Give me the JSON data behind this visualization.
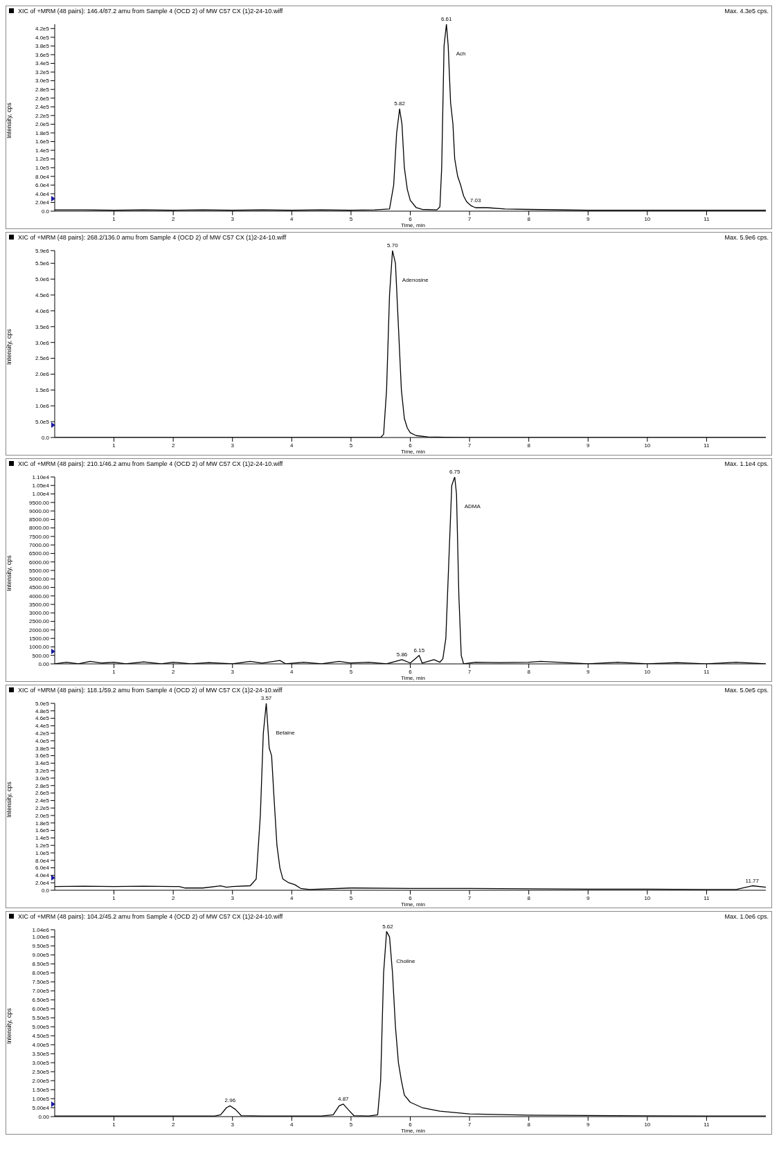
{
  "chart_data": [
    {
      "type": "line",
      "title": "XIC of +MRM (48 pairs): 146.4/87.2 amu from Sample 4 (OCD 2) of MW C57 CX (1)2-24-10.wiff",
      "subtitle": "Max. 4.3e5 cps.",
      "xlabel": "Time, min",
      "ylabel": "Intensity, cps",
      "marker": "none",
      "xlim": [
        0,
        12
      ],
      "xticks": [
        1,
        2,
        3,
        4,
        5,
        6,
        7,
        8,
        9,
        10,
        11
      ],
      "ylim": [
        0,
        430000
      ],
      "yticks": [
        {
          "value": 0,
          "label": "0.0"
        },
        {
          "value": 20000,
          "label": "2.0e4"
        },
        {
          "value": 40000,
          "label": "4.0e4"
        },
        {
          "value": 60000,
          "label": "6.0e4"
        },
        {
          "value": 80000,
          "label": "8.0e4"
        },
        {
          "value": 100000,
          "label": "1.0e5"
        },
        {
          "value": 120000,
          "label": "1.2e5"
        },
        {
          "value": 140000,
          "label": "1.4e5"
        },
        {
          "value": 160000,
          "label": "1.6e5"
        },
        {
          "value": 180000,
          "label": "1.8e5"
        },
        {
          "value": 200000,
          "label": "2.0e5"
        },
        {
          "value": 220000,
          "label": "2.2e5"
        },
        {
          "value": 240000,
          "label": "2.4e5"
        },
        {
          "value": 260000,
          "label": "2.6e5"
        },
        {
          "value": 280000,
          "label": "2.8e5"
        },
        {
          "value": 300000,
          "label": "3.0e5"
        },
        {
          "value": 320000,
          "label": "3.2e5"
        },
        {
          "value": 340000,
          "label": "3.4e5"
        },
        {
          "value": 360000,
          "label": "3.6e5"
        },
        {
          "value": 380000,
          "label": "3.8e5"
        },
        {
          "value": 400000,
          "label": "4.0e5"
        },
        {
          "value": 420000,
          "label": "4.2e5"
        }
      ],
      "annotations": [
        {
          "text": "5.82",
          "x": 5.82,
          "y": 235000
        },
        {
          "text": "6.61",
          "x": 6.61,
          "y": 430000
        },
        "Ach",
        {
          "text": "7.03",
          "x": 7.1,
          "y": 12000
        }
      ],
      "series": [
        {
          "color": "#000000",
          "x": [
            0,
            0.5,
            1,
            1.5,
            2,
            2.5,
            3,
            3.5,
            4,
            4.5,
            5,
            5.4,
            5.65,
            5.72,
            5.77,
            5.82,
            5.86,
            5.9,
            5.95,
            6.0,
            6.1,
            6.2,
            6.45,
            6.5,
            6.53,
            6.57,
            6.61,
            6.64,
            6.68,
            6.72,
            6.75,
            6.8,
            6.85,
            6.9,
            6.95,
            7.03,
            7.1,
            7.3,
            7.6,
            8,
            9,
            10,
            11,
            12
          ],
          "values": [
            3000,
            3000,
            2000,
            3000,
            2000,
            3000,
            2000,
            3000,
            2000,
            3000,
            2000,
            3000,
            5000,
            60000,
            180000,
            235000,
            200000,
            100000,
            50000,
            25000,
            8000,
            4000,
            3000,
            10000,
            100000,
            380000,
            430000,
            380000,
            250000,
            200000,
            120000,
            80000,
            60000,
            35000,
            22000,
            12000,
            8000,
            8000,
            5000,
            4000,
            2000,
            2000,
            2000,
            2000
          ]
        }
      ]
    },
    {
      "type": "line",
      "title": "XIC of +MRM (48 pairs): 268.2/136.0 amu from Sample 4 (OCD 2) of MW C57 CX (1)2-24-10.wiff",
      "subtitle": "Max. 5.9e6 cps.",
      "xlabel": "Time, min",
      "ylabel": "Intensity, cps",
      "marker": "none",
      "xlim": [
        0,
        12
      ],
      "xticks": [
        1,
        2,
        3,
        4,
        5,
        6,
        7,
        8,
        9,
        10,
        11
      ],
      "ylim": [
        0,
        5900000
      ],
      "yticks": [
        {
          "value": 0,
          "label": "0.0"
        },
        {
          "value": 500000,
          "label": "5.0e5"
        },
        {
          "value": 1000000,
          "label": "1.0e6"
        },
        {
          "value": 1500000,
          "label": "1.5e6"
        },
        {
          "value": 2000000,
          "label": "2.0e6"
        },
        {
          "value": 2500000,
          "label": "2.5e6"
        },
        {
          "value": 3000000,
          "label": "3.0e6"
        },
        {
          "value": 3500000,
          "label": "3.5e6"
        },
        {
          "value": 4000000,
          "label": "4.0e6"
        },
        {
          "value": 4500000,
          "label": "4.5e6"
        },
        {
          "value": 5000000,
          "label": "5.0e6"
        },
        {
          "value": 5500000,
          "label": "5.5e6"
        },
        {
          "value": 5900000,
          "label": "5.9e6"
        }
      ],
      "annotations": [
        {
          "text": "5.70",
          "x": 5.7,
          "y": 5900000
        },
        "Adenosine"
      ],
      "series": [
        {
          "color": "#000000",
          "x": [
            0,
            1,
            2,
            3,
            4,
            5,
            5.5,
            5.55,
            5.6,
            5.65,
            5.7,
            5.75,
            5.8,
            5.85,
            5.9,
            5.95,
            6.0,
            6.1,
            6.3,
            6.6,
            7,
            8,
            10,
            12
          ],
          "values": [
            0,
            0,
            0,
            0,
            0,
            0,
            0,
            100000,
            1500000,
            4500000,
            5900000,
            5500000,
            3500000,
            1500000,
            600000,
            300000,
            150000,
            60000,
            20000,
            10000,
            0,
            0,
            0,
            0
          ]
        }
      ]
    },
    {
      "type": "line",
      "title": "XIC of +MRM (48 pairs): 210.1/46.2 amu from Sample 4 (OCD 2) of MW C57 CX (1)2-24-10.wiff",
      "subtitle": "Max. 1.1e4 cps.",
      "xlabel": "Time, min",
      "ylabel": "Intensity, cps",
      "marker": "none",
      "xlim": [
        0,
        12
      ],
      "xticks": [
        1,
        2,
        3,
        4,
        5,
        6,
        7,
        8,
        9,
        10,
        11
      ],
      "ylim": [
        0,
        11000
      ],
      "yticks": [
        {
          "value": 0,
          "label": "0.00"
        },
        {
          "value": 500,
          "label": "500.00"
        },
        {
          "value": 1000,
          "label": "1000.00"
        },
        {
          "value": 1500,
          "label": "1500.00"
        },
        {
          "value": 2000,
          "label": "2000.00"
        },
        {
          "value": 2500,
          "label": "2500.00"
        },
        {
          "value": 3000,
          "label": "3000.00"
        },
        {
          "value": 3500,
          "label": "3500.00"
        },
        {
          "value": 4000,
          "label": "4000.00"
        },
        {
          "value": 4500,
          "label": "4500.00"
        },
        {
          "value": 5000,
          "label": "5000.00"
        },
        {
          "value": 5500,
          "label": "5500.00"
        },
        {
          "value": 6000,
          "label": "6000.00"
        },
        {
          "value": 6500,
          "label": "6500.00"
        },
        {
          "value": 7000,
          "label": "7000.00"
        },
        {
          "value": 7500,
          "label": "7500.00"
        },
        {
          "value": 8000,
          "label": "8000.00"
        },
        {
          "value": 8500,
          "label": "8500.00"
        },
        {
          "value": 9000,
          "label": "9000.00"
        },
        {
          "value": 9500,
          "label": "9500.00"
        },
        {
          "value": 10000,
          "label": "1.00e4"
        },
        {
          "value": 10500,
          "label": "1.05e4"
        },
        {
          "value": 11000,
          "label": "1.10e4"
        }
      ],
      "annotations": [
        {
          "text": "5.86",
          "x": 5.86,
          "y": 250
        },
        {
          "text": "6.15",
          "x": 6.15,
          "y": 500
        },
        {
          "text": "6.75",
          "x": 6.75,
          "y": 11000
        },
        "ADMA"
      ],
      "series": [
        {
          "color": "#000000",
          "x": [
            0,
            0.2,
            0.4,
            0.6,
            0.8,
            1.0,
            1.2,
            1.5,
            1.8,
            2.0,
            2.3,
            2.6,
            3.0,
            3.3,
            3.5,
            3.8,
            3.9,
            4.2,
            4.5,
            4.8,
            5.0,
            5.3,
            5.6,
            5.86,
            6.0,
            6.15,
            6.2,
            6.4,
            6.5,
            6.55,
            6.6,
            6.65,
            6.7,
            6.75,
            6.78,
            6.82,
            6.86,
            6.9,
            7.1,
            7.5,
            8.0,
            8.2,
            8.6,
            9.0,
            9.5,
            10.0,
            10.5,
            11.0,
            11.5,
            12.0
          ],
          "values": [
            0,
            100,
            0,
            150,
            50,
            100,
            0,
            120,
            0,
            100,
            0,
            80,
            0,
            150,
            50,
            200,
            0,
            100,
            0,
            150,
            50,
            100,
            0,
            250,
            50,
            500,
            50,
            250,
            100,
            300,
            1500,
            6000,
            10500,
            11000,
            10000,
            4000,
            500,
            0,
            100,
            80,
            100,
            150,
            80,
            0,
            100,
            0,
            80,
            0,
            100,
            0
          ]
        }
      ]
    },
    {
      "type": "line",
      "title": "XIC of +MRM (48 pairs): 118.1/59.2 amu from Sample 4 (OCD 2) of MW C57 CX (1)2-24-10.wiff",
      "subtitle": "Max. 5.0e5 cps.",
      "xlabel": "Time, min",
      "ylabel": "Intensity, cps",
      "marker": "none",
      "xlim": [
        0,
        12
      ],
      "xticks": [
        1,
        2,
        3,
        4,
        5,
        6,
        7,
        8,
        9,
        10,
        11
      ],
      "ylim": [
        0,
        500000
      ],
      "yticks": [
        {
          "value": 0,
          "label": "0.0"
        },
        {
          "value": 20000,
          "label": "2.0e4"
        },
        {
          "value": 40000,
          "label": "4.0e4"
        },
        {
          "value": 60000,
          "label": "6.0e4"
        },
        {
          "value": 80000,
          "label": "8.0e4"
        },
        {
          "value": 100000,
          "label": "1.0e5"
        },
        {
          "value": 120000,
          "label": "1.2e5"
        },
        {
          "value": 140000,
          "label": "1.4e5"
        },
        {
          "value": 160000,
          "label": "1.6e5"
        },
        {
          "value": 180000,
          "label": "1.8e5"
        },
        {
          "value": 200000,
          "label": "2.0e5"
        },
        {
          "value": 220000,
          "label": "2.2e5"
        },
        {
          "value": 240000,
          "label": "2.4e5"
        },
        {
          "value": 260000,
          "label": "2.6e5"
        },
        {
          "value": 280000,
          "label": "2.8e5"
        },
        {
          "value": 300000,
          "label": "3.0e5"
        },
        {
          "value": 320000,
          "label": "3.2e5"
        },
        {
          "value": 340000,
          "label": "3.4e5"
        },
        {
          "value": 360000,
          "label": "3.6e5"
        },
        {
          "value": 380000,
          "label": "3.8e5"
        },
        {
          "value": 400000,
          "label": "4.0e5"
        },
        {
          "value": 420000,
          "label": "4.2e5"
        },
        {
          "value": 440000,
          "label": "4.4e5"
        },
        {
          "value": 460000,
          "label": "4.6e5"
        },
        {
          "value": 480000,
          "label": "4.8e5"
        },
        {
          "value": 500000,
          "label": "5.0e5"
        }
      ],
      "annotations": [
        {
          "text": "3.57",
          "x": 3.57,
          "y": 500000
        },
        "Betaine",
        {
          "text": "11.77",
          "x": 11.77,
          "y": 12000
        }
      ],
      "series": [
        {
          "color": "#000000",
          "x": [
            0,
            0.5,
            1,
            1.5,
            2,
            2.1,
            2.2,
            2.5,
            2.8,
            2.9,
            3.0,
            3.3,
            3.4,
            3.47,
            3.52,
            3.57,
            3.62,
            3.66,
            3.7,
            3.75,
            3.8,
            3.85,
            3.95,
            4.05,
            4.15,
            4.3,
            5,
            6,
            7,
            8,
            9,
            10,
            11,
            11.5,
            11.77,
            12
          ],
          "values": [
            10000,
            11000,
            10000,
            11000,
            10000,
            10000,
            6000,
            6000,
            12000,
            8000,
            10000,
            12000,
            30000,
            200000,
            420000,
            500000,
            380000,
            360000,
            250000,
            120000,
            60000,
            30000,
            20000,
            15000,
            5000,
            2000,
            6000,
            5000,
            5000,
            4000,
            3000,
            3000,
            2000,
            2000,
            12000,
            8000
          ]
        }
      ]
    },
    {
      "type": "line",
      "title": "XIC of +MRM (48 pairs): 104.2/45.2 amu from Sample 4 (OCD 2) of MW C57 CX (1)2-24-10.wiff",
      "subtitle": "Max. 1.0e6 cps.",
      "xlabel": "Time, min",
      "ylabel": "Intensity, cps",
      "marker": "none",
      "xlim": [
        0,
        12
      ],
      "xticks": [
        1,
        2,
        3,
        4,
        5,
        6,
        7,
        8,
        9,
        10,
        11
      ],
      "ylim": [
        0,
        1040000
      ],
      "yticks": [
        {
          "value": 0,
          "label": "0.00"
        },
        {
          "value": 50000,
          "label": "5.00e4"
        },
        {
          "value": 100000,
          "label": "1.00e5"
        },
        {
          "value": 150000,
          "label": "1.50e5"
        },
        {
          "value": 200000,
          "label": "2.00e5"
        },
        {
          "value": 250000,
          "label": "2.50e5"
        },
        {
          "value": 300000,
          "label": "3.00e5"
        },
        {
          "value": 350000,
          "label": "3.50e5"
        },
        {
          "value": 400000,
          "label": "4.00e5"
        },
        {
          "value": 450000,
          "label": "4.50e5"
        },
        {
          "value": 500000,
          "label": "5.00e5"
        },
        {
          "value": 550000,
          "label": "5.50e5"
        },
        {
          "value": 600000,
          "label": "6.00e5"
        },
        {
          "value": 650000,
          "label": "6.50e5"
        },
        {
          "value": 700000,
          "label": "7.00e5"
        },
        {
          "value": 750000,
          "label": "7.50e5"
        },
        {
          "value": 800000,
          "label": "8.00e5"
        },
        {
          "value": 850000,
          "label": "8.50e5"
        },
        {
          "value": 900000,
          "label": "9.00e5"
        },
        {
          "value": 950000,
          "label": "9.50e5"
        },
        {
          "value": 1000000,
          "label": "1.00e6"
        },
        {
          "value": 1040000,
          "label": "1.04e6"
        }
      ],
      "annotations": [
        {
          "text": "2.96",
          "x": 2.96,
          "y": 60000
        },
        {
          "text": "4.87",
          "x": 4.87,
          "y": 70000
        },
        {
          "text": "5.62",
          "x": 5.62,
          "y": 1030000
        },
        "Choline"
      ],
      "series": [
        {
          "color": "#000000",
          "x": [
            0,
            1,
            2,
            2.7,
            2.8,
            2.9,
            2.96,
            3.05,
            3.15,
            3.5,
            4.5,
            4.7,
            4.8,
            4.87,
            4.95,
            5.05,
            5.3,
            5.45,
            5.5,
            5.55,
            5.6,
            5.65,
            5.7,
            5.75,
            5.8,
            5.85,
            5.9,
            6.0,
            6.2,
            6.5,
            7,
            8,
            10,
            12
          ],
          "values": [
            3000,
            3000,
            3000,
            3000,
            10000,
            50000,
            60000,
            40000,
            5000,
            3000,
            3000,
            10000,
            60000,
            70000,
            40000,
            5000,
            3000,
            10000,
            200000,
            800000,
            1030000,
            1000000,
            800000,
            500000,
            300000,
            200000,
            120000,
            80000,
            50000,
            30000,
            15000,
            8000,
            4000,
            3000
          ]
        }
      ]
    }
  ]
}
